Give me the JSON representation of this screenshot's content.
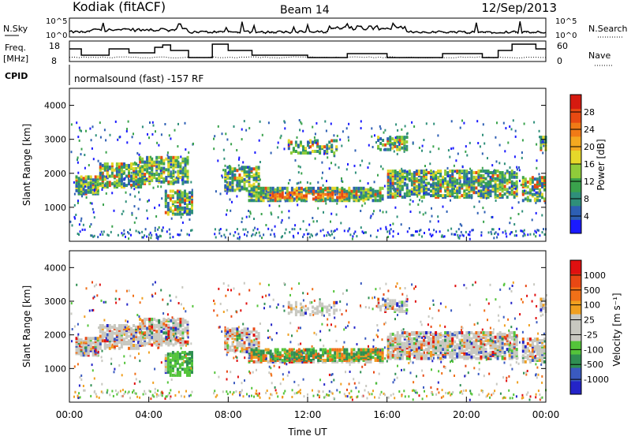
{
  "header": {
    "station": "Kodiak (fitACF)",
    "beam": "Beam 14",
    "date": "12/Sep/2013"
  },
  "noise_panel": {
    "left_label": "N.Sky",
    "right_label": "N.Search",
    "ticks_left": [
      "10^5",
      "10^0"
    ],
    "ticks_right": [
      "10^5",
      "10^0"
    ]
  },
  "freq_panel": {
    "left_label_1": "Freq.",
    "left_label_2": "[MHz]",
    "right_label": "Nave",
    "ticks_left": [
      "18",
      "8"
    ],
    "ticks_right": [
      "60",
      "0"
    ]
  },
  "cpid": {
    "label": "CPID",
    "text": "normalsound (fast) -157 RF"
  },
  "chart_data": [
    {
      "type": "heatmap",
      "name": "Power",
      "ylabel": "Slant Range [km]",
      "xlabel": "Time UT",
      "yticks": [
        "1000",
        "2000",
        "3000",
        "4000"
      ],
      "ylim": [
        0,
        4500
      ],
      "colorbar": {
        "label": "Power [dB]",
        "ticks": [
          "4",
          "8",
          "12",
          "16",
          "20",
          "24",
          "28"
        ],
        "colors": [
          "#1a1aff",
          "#2d5fb4",
          "#2f8f7a",
          "#3aa24c",
          "#8fcc3a",
          "#e6d82a",
          "#f4a820",
          "#f07a16",
          "#e84a12",
          "#d61a10"
        ]
      }
    },
    {
      "type": "heatmap",
      "name": "Velocity",
      "ylabel": "Slant Range [km]",
      "xlabel": "Time UT",
      "yticks": [
        "1000",
        "2000",
        "3000",
        "4000"
      ],
      "ylim": [
        0,
        4500
      ],
      "colorbar": {
        "label": "Velocity [m s⁻¹]",
        "ticks": [
          "1000",
          "500",
          "100",
          "25",
          "-25",
          "-100",
          "-500",
          "-1000"
        ],
        "colors": [
          "#2424c8",
          "#3a5ac0",
          "#2f8f52",
          "#54c43a",
          "#c8c8c0",
          "#c8c8c0",
          "#f0a020",
          "#f07018",
          "#e84814",
          "#e01010"
        ]
      }
    }
  ],
  "time_axis": {
    "ticks": [
      "00:00",
      "04:00",
      "08:00",
      "12:00",
      "16:00",
      "20:00",
      "00:00"
    ],
    "label": "Time UT"
  }
}
